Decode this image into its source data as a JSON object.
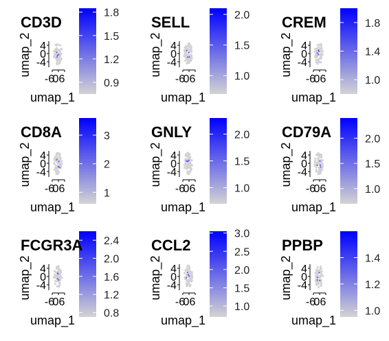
{
  "chart_data": [
    {
      "type": "scatter",
      "title": "CD3D",
      "xlabel": "umap_1",
      "ylabel": "umap_2",
      "x_ticks": [
        "-6",
        "0",
        "6"
      ],
      "y_ticks": [
        "4",
        "0",
        "-4"
      ],
      "colorbar": {
        "min": 0.75,
        "max": 1.85,
        "ticks": [
          0.9,
          1.2,
          1.5,
          1.8
        ],
        "low_color": "#d3d3d3",
        "high_color": "#0000ff"
      }
    },
    {
      "type": "scatter",
      "title": "SELL",
      "xlabel": "umap_1",
      "ylabel": "umap_2",
      "x_ticks": [
        "-6",
        "0",
        "6"
      ],
      "y_ticks": [
        "4",
        "0",
        "-4"
      ],
      "colorbar": {
        "min": 0.7,
        "max": 2.1,
        "ticks": [
          1.0,
          1.5,
          2.0
        ],
        "low_color": "#d3d3d3",
        "high_color": "#0000ff"
      }
    },
    {
      "type": "scatter",
      "title": "CREM",
      "xlabel": "umap_1",
      "ylabel": "umap_2",
      "x_ticks": [
        "-6",
        "0",
        "6"
      ],
      "y_ticks": [
        "4",
        "0",
        "-4"
      ],
      "colorbar": {
        "min": 0.8,
        "max": 2.0,
        "ticks": [
          1.0,
          1.4,
          1.8
        ],
        "low_color": "#d3d3d3",
        "high_color": "#0000ff"
      }
    },
    {
      "type": "scatter",
      "title": "CD8A",
      "xlabel": "umap_1",
      "ylabel": "umap_2",
      "x_ticks": [
        "-6",
        "0",
        "6"
      ],
      "y_ticks": [
        "4",
        "0",
        "-4"
      ],
      "colorbar": {
        "min": 0.6,
        "max": 3.6,
        "ticks": [
          1,
          2,
          3
        ],
        "low_color": "#d3d3d3",
        "high_color": "#0000ff"
      }
    },
    {
      "type": "scatter",
      "title": "GNLY",
      "xlabel": "umap_1",
      "ylabel": "umap_2",
      "x_ticks": [
        "-6",
        "0",
        "6"
      ],
      "y_ticks": [
        "4",
        "0",
        "-4"
      ],
      "colorbar": {
        "min": 0.7,
        "max": 2.3,
        "ticks": [
          1.0,
          1.5,
          2.0
        ],
        "low_color": "#d3d3d3",
        "high_color": "#0000ff"
      }
    },
    {
      "type": "scatter",
      "title": "CD79A",
      "xlabel": "umap_1",
      "ylabel": "umap_2",
      "x_ticks": [
        "-6",
        "0",
        "6"
      ],
      "y_ticks": [
        "4",
        "0",
        "-4"
      ],
      "colorbar": {
        "min": 0.7,
        "max": 2.4,
        "ticks": [
          1.0,
          1.5,
          2.0
        ],
        "low_color": "#d3d3d3",
        "high_color": "#0000ff"
      }
    },
    {
      "type": "scatter",
      "title": "FCGR3A",
      "xlabel": "umap_1",
      "ylabel": "umap_2",
      "x_ticks": [
        "-6",
        "0",
        "6"
      ],
      "y_ticks": [
        "4",
        "0",
        "-4"
      ],
      "colorbar": {
        "min": 0.7,
        "max": 2.6,
        "ticks": [
          0.8,
          1.2,
          1.6,
          2.0,
          2.4
        ],
        "low_color": "#d3d3d3",
        "high_color": "#0000ff"
      }
    },
    {
      "type": "scatter",
      "title": "CCL2",
      "xlabel": "umap_1",
      "ylabel": "umap_2",
      "x_ticks": [
        "-6",
        "0",
        "6"
      ],
      "y_ticks": [
        "4",
        "0",
        "-4"
      ],
      "colorbar": {
        "min": 0.7,
        "max": 3.05,
        "ticks": [
          1.0,
          1.5,
          2.0,
          2.5,
          3.0
        ],
        "low_color": "#d3d3d3",
        "high_color": "#0000ff"
      }
    },
    {
      "type": "scatter",
      "title": "PPBP",
      "xlabel": "umap_1",
      "ylabel": "umap_2",
      "x_ticks": [
        "-6",
        "0",
        "6"
      ],
      "y_ticks": [
        "4",
        "0",
        "-4"
      ],
      "colorbar": {
        "min": 0.95,
        "max": 1.6,
        "ticks": [
          1.0,
          1.2,
          1.4
        ],
        "low_color": "#d3d3d3",
        "high_color": "#0000ff"
      }
    }
  ]
}
